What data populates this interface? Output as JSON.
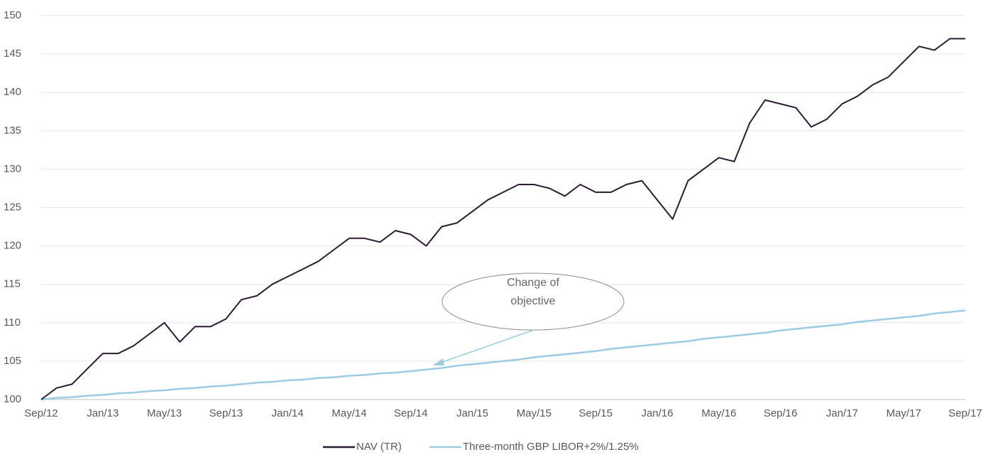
{
  "chart_data": {
    "type": "line",
    "x": [
      "Sep/12",
      "Oct/12",
      "Nov/12",
      "Dec/12",
      "Jan/13",
      "Feb/13",
      "Mar/13",
      "Apr/13",
      "May/13",
      "Jun/13",
      "Jul/13",
      "Aug/13",
      "Sep/13",
      "Oct/13",
      "Nov/13",
      "Dec/13",
      "Jan/14",
      "Feb/14",
      "Mar/14",
      "Apr/14",
      "May/14",
      "Jun/14",
      "Jul/14",
      "Aug/14",
      "Sep/14",
      "Oct/14",
      "Nov/14",
      "Dec/14",
      "Jan/15",
      "Feb/15",
      "Mar/15",
      "Apr/15",
      "May/15",
      "Jun/15",
      "Jul/15",
      "Aug/15",
      "Sep/15",
      "Oct/15",
      "Nov/15",
      "Dec/15",
      "Jan/16",
      "Feb/16",
      "Mar/16",
      "Apr/16",
      "May/16",
      "Jun/16",
      "Jul/16",
      "Aug/16",
      "Sep/16",
      "Oct/16",
      "Nov/16",
      "Dec/16",
      "Jan/17",
      "Feb/17",
      "Mar/17",
      "Apr/17",
      "May/17",
      "Jun/17",
      "Jul/17",
      "Aug/17",
      "Sep/17"
    ],
    "xticks": [
      "Sep/12",
      "Jan/13",
      "May/13",
      "Sep/13",
      "Jan/14",
      "May/14",
      "Sep/14",
      "Jan/15",
      "May/15",
      "Sep/15",
      "Jan/16",
      "May/16",
      "Sep/16",
      "Jan/17",
      "May/17",
      "Sep/17"
    ],
    "series": [
      {
        "name": "NAV (TR)",
        "color": "#2d1a33",
        "values": [
          100,
          101.5,
          102,
          104,
          106,
          106,
          107,
          108.5,
          110,
          107.5,
          109.5,
          109.5,
          110.5,
          113,
          113.5,
          115,
          116,
          117,
          118,
          119.5,
          121,
          121,
          120.5,
          122,
          121.5,
          120,
          122.5,
          123,
          124.5,
          126,
          127,
          128,
          128,
          127.5,
          126.5,
          128,
          127,
          127,
          128,
          128.5,
          126,
          123.5,
          128.5,
          130,
          131.5,
          131,
          136,
          139,
          138.5,
          138,
          135.5,
          136.5,
          138.5,
          139.5,
          141,
          142,
          144,
          146,
          145.5,
          147,
          147
        ]
      },
      {
        "name": "Three-month GBP LIBOR+2%/1.25%",
        "color": "#9ccbe3",
        "values": [
          100.0,
          100.2,
          100.3,
          100.5,
          100.6,
          100.8,
          100.9,
          101.1,
          101.2,
          101.4,
          101.5,
          101.7,
          101.8,
          102.0,
          102.2,
          102.3,
          102.5,
          102.6,
          102.8,
          102.9,
          103.1,
          103.2,
          103.4,
          103.5,
          103.7,
          103.9,
          104.1,
          104.4,
          104.6,
          104.8,
          105.0,
          105.2,
          105.5,
          105.7,
          105.9,
          106.1,
          106.3,
          106.6,
          106.8,
          107.0,
          107.2,
          107.4,
          107.6,
          107.9,
          108.1,
          108.3,
          108.5,
          108.7,
          109.0,
          109.2,
          109.4,
          109.6,
          109.8,
          110.1,
          110.3,
          110.5,
          110.7,
          110.9,
          111.2,
          111.4,
          111.6
        ]
      }
    ],
    "ylim": [
      100,
      150
    ],
    "yticks": [
      100,
      105,
      110,
      115,
      120,
      125,
      130,
      135,
      140,
      145,
      150
    ],
    "grid": true,
    "annotation": "Change of objective"
  }
}
